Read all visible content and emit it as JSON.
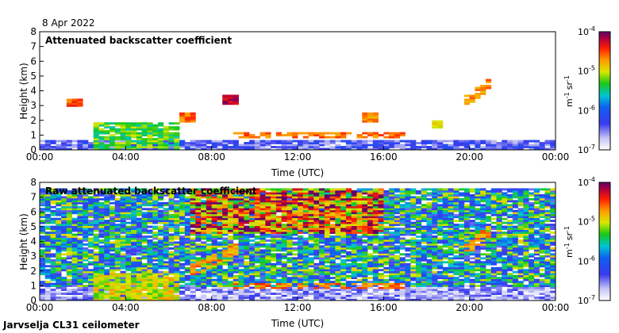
{
  "date_label": "8 Apr 2022",
  "footer_label": "Jarvselja CL31 ceilometer",
  "chart_data": [
    {
      "type": "heatmap",
      "title": "Attenuated backscatter coefficient",
      "xlabel": "Time (UTC)",
      "ylabel": "Height (km)",
      "xlim_hours": [
        0,
        24
      ],
      "x_ticks": [
        "00:00",
        "04:00",
        "08:00",
        "12:00",
        "16:00",
        "20:00",
        "00:00"
      ],
      "ylim_km": [
        0,
        8
      ],
      "y_ticks": [
        "0",
        "1",
        "2",
        "3",
        "4",
        "5",
        "6",
        "7",
        "8"
      ],
      "colorbar": {
        "scale": "log",
        "range": [
          1e-07,
          0.0001
        ],
        "ticks": [
          {
            "base": "10",
            "exp": "-4"
          },
          {
            "base": "10",
            "exp": "-5"
          },
          {
            "base": "10",
            "exp": "-6"
          },
          {
            "base": "10",
            "exp": "-7"
          }
        ],
        "unit_base": "m",
        "unit_exp1": "-1",
        "unit_mid": "sr",
        "unit_exp2": "-1"
      },
      "features": [
        {
          "name": "boundary layer",
          "t_start": 0,
          "t_end": 24,
          "h_top_km": 0.6,
          "level_log": -6.4
        },
        {
          "name": "low cloud band",
          "t_start": 2.5,
          "t_end": 6.5,
          "h_top_km": 1.8,
          "level_log": -5.3
        },
        {
          "name": "cloud 01:30",
          "t": 1.6,
          "h_km": 3.2,
          "level_log": -4.5
        },
        {
          "name": "cloud 06:50",
          "t": 6.8,
          "h_km": 2.2,
          "level_log": -4.6
        },
        {
          "name": "cloud 09:00",
          "t": 8.8,
          "h_km": 3.4,
          "level_log": -4.2
        },
        {
          "name": "cloud layer 10-17",
          "t_start": 9.0,
          "t_end": 17.0,
          "h_km": 1.0,
          "level_log": -4.6
        },
        {
          "name": "cloud 15:30",
          "t": 15.3,
          "h_km": 2.2,
          "level_log": -4.7
        },
        {
          "name": "cloud 18:30",
          "t": 18.5,
          "h_km": 1.7,
          "level_log": -4.9
        },
        {
          "name": "rising layer 20-21",
          "t_start": 19.8,
          "t_end": 21.0,
          "h_start_km": 3.2,
          "h_end_km": 4.6,
          "level_log": -4.7
        }
      ]
    },
    {
      "type": "heatmap",
      "title": "Raw attenuated backscatter coefficient",
      "xlabel": "Time (UTC)",
      "ylabel": "Height (km)",
      "xlim_hours": [
        0,
        24
      ],
      "x_ticks": [
        "00:00",
        "04:00",
        "08:00",
        "12:00",
        "16:00",
        "20:00",
        "00:00"
      ],
      "ylim_km": [
        0,
        8
      ],
      "y_ticks": [
        "0",
        "1",
        "2",
        "3",
        "4",
        "5",
        "6",
        "7",
        "8"
      ],
      "colorbar": {
        "scale": "log",
        "range": [
          1e-07,
          0.0001
        ],
        "ticks": [
          {
            "base": "10",
            "exp": "-4"
          },
          {
            "base": "10",
            "exp": "-5"
          },
          {
            "base": "10",
            "exp": "-6"
          },
          {
            "base": "10",
            "exp": "-7"
          }
        ],
        "unit_base": "m",
        "unit_exp1": "-1",
        "unit_mid": "sr",
        "unit_exp2": "-1"
      },
      "features": [
        {
          "name": "noise field",
          "t_start": 0,
          "t_end": 24,
          "h_start_km": 1.0,
          "h_end_km": 7.6,
          "level_log": -5.7
        },
        {
          "name": "high noise area",
          "t_start": 7,
          "t_end": 16,
          "h_start_km": 4.5,
          "h_end_km": 7.6,
          "level_log": -4.6
        },
        {
          "name": "boundary layer",
          "t_start": 0,
          "t_end": 24,
          "h_top_km": 1.0,
          "level_log": -6.6
        },
        {
          "name": "low cloud band",
          "t_start": 2.5,
          "t_end": 6.5,
          "h_top_km": 1.8,
          "level_log": -5.0
        },
        {
          "name": "rising layer 07-09",
          "t_start": 7.0,
          "t_end": 9.2,
          "h_start_km": 2.0,
          "h_end_km": 3.5,
          "level_log": -4.7
        },
        {
          "name": "cloud layer 10-17",
          "t_start": 9.0,
          "t_end": 17.0,
          "h_km": 1.0,
          "level_log": -4.6
        },
        {
          "name": "rising layer 20-21",
          "t_start": 19.8,
          "t_end": 21.0,
          "h_start_km": 3.4,
          "h_end_km": 4.8,
          "level_log": -4.7
        }
      ]
    }
  ]
}
